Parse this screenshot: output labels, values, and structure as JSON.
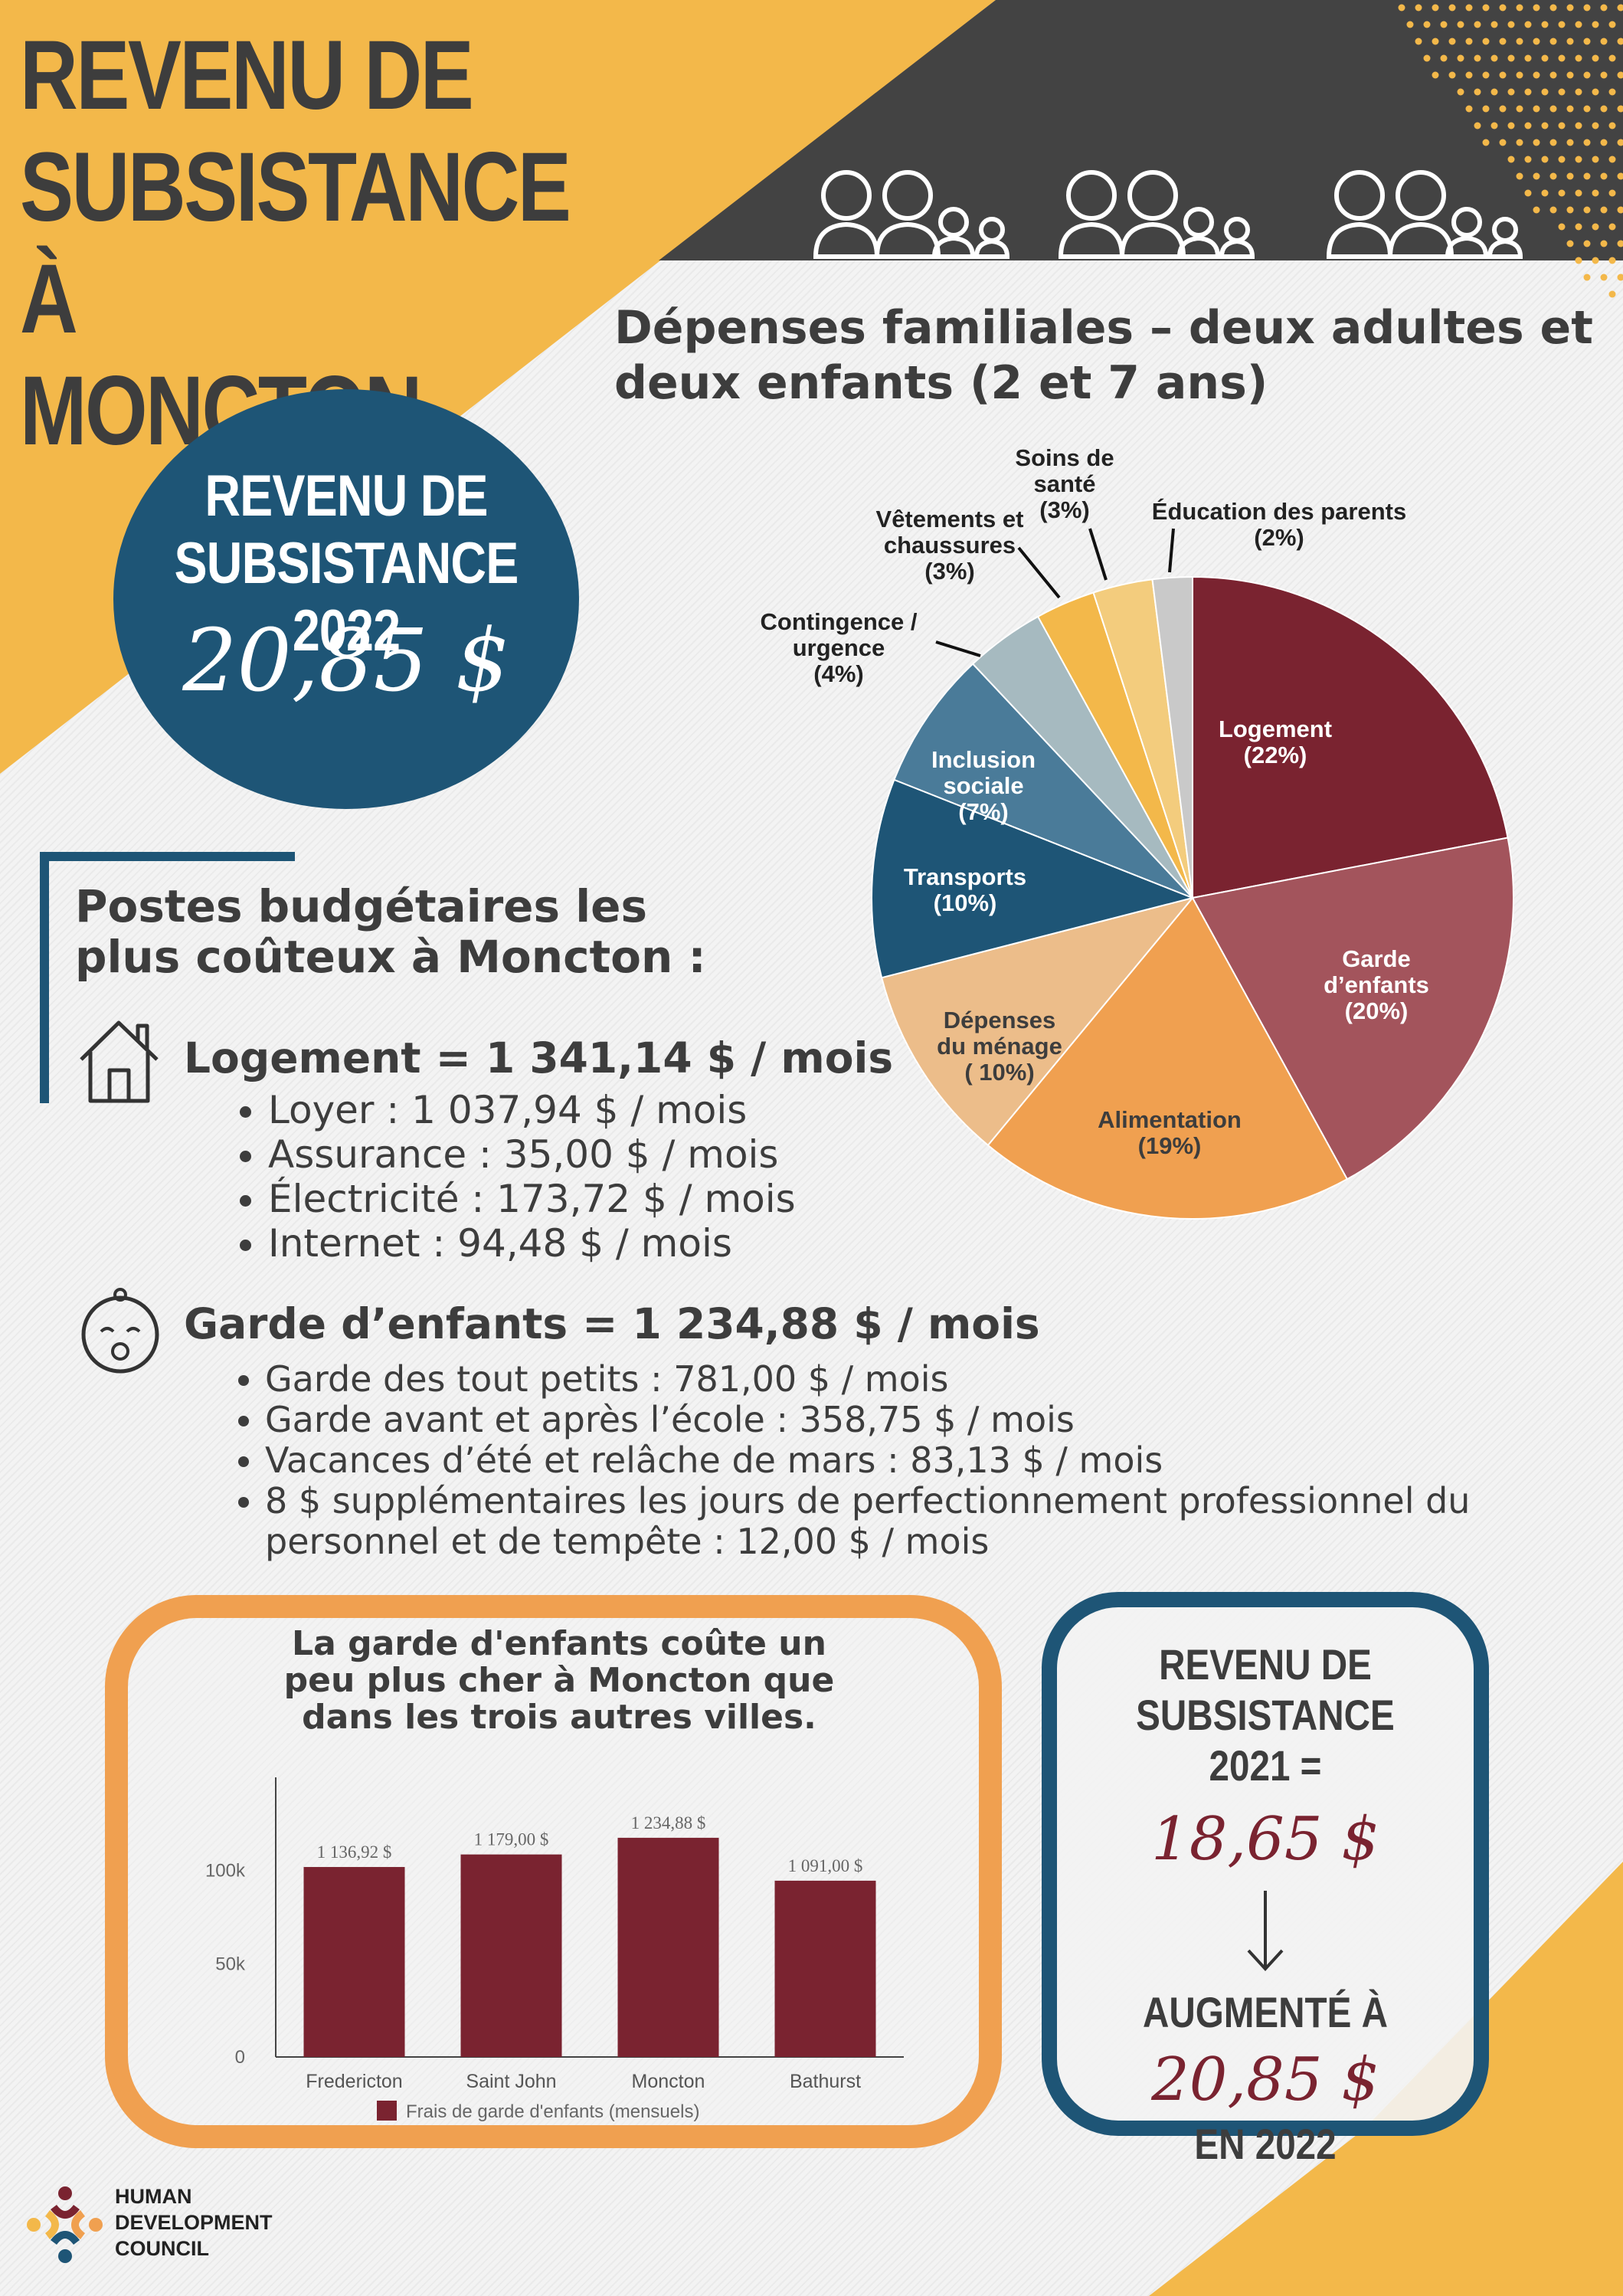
{
  "header": {
    "title": "REVENU DE SUBSISTANCE À MONCTON"
  },
  "highlight": {
    "label": "REVENU DE SUBSISTANCE 2022",
    "value": "20,85 $"
  },
  "pie_title": "Dépenses familiales – deux adultes et deux enfants (2 et 7 ans)",
  "budget": {
    "title": "Postes budgétaires les plus coûteux à Moncton :",
    "housing": {
      "heading": "Logement = 1 341,14 $ / mois",
      "items": [
        "Loyer : 1 037,94 $ / mois",
        "Assurance : 35,00 $ / mois",
        "Électricité : 173,72 $ / mois",
        "Internet : 94,48 $ / mois"
      ]
    },
    "childcare": {
      "heading": "Garde d’enfants = 1 234,88 $ / mois",
      "items": [
        "Garde des tout petits : 781,00 $ / mois",
        "Garde avant et après l’école : 358,75 $ / mois",
        "Vacances d’été et relâche de mars : 83,13 $ / mois",
        "8 $ supplémentaires les jours de perfectionnement professionnel du personnel et de tempête : 12,00 $ / mois"
      ]
    }
  },
  "bar_section": {
    "title": "La garde d'enfants coûte un peu plus cher à Moncton que dans les trois autres villes."
  },
  "comparison": {
    "label_2021": "REVENU DE SUBSISTANCE 2021 =",
    "value_2021": "18,65 $",
    "label_increase": "AUGMENTÉ À",
    "value_2022": "20,85 $",
    "label_year": "EN 2022"
  },
  "logo": {
    "lines": [
      "HUMAN",
      "DEVELOPMENT",
      "COUNCIL"
    ]
  },
  "colors": {
    "dark": "#3d3d3d",
    "yellow": "#f3b84a",
    "navy": "#1e5576",
    "maroon": "#7a2330",
    "orange": "#f0a050"
  },
  "chart_data": [
    {
      "type": "pie",
      "title": "Dépenses familiales – deux adultes et deux enfants (2 et 7 ans)",
      "slices": [
        {
          "label": [
            "Logement",
            "(22%)"
          ],
          "value": 22,
          "color": "#7a2330"
        },
        {
          "label": [
            "Garde",
            "d’enfants",
            "(20%)"
          ],
          "value": 20,
          "color": "#a3545c"
        },
        {
          "label": [
            "Alimentation",
            "(19%)"
          ],
          "value": 19,
          "color": "#f0a050"
        },
        {
          "label": [
            "Dépenses",
            "du ménage",
            "( 10%)"
          ],
          "value": 10,
          "color": "#ecbd8a"
        },
        {
          "label": [
            "Transports",
            "(10%)"
          ],
          "value": 10,
          "color": "#1e5576"
        },
        {
          "label": [
            "Inclusion",
            "sociale",
            "(7%)"
          ],
          "value": 7,
          "color": "#4a7b99"
        },
        {
          "label": [
            "Contingence /",
            "urgence",
            "(4%)"
          ],
          "value": 4,
          "color": "#a6bac0"
        },
        {
          "label": [
            "Vêtements et",
            "chaussures",
            "(3%)"
          ],
          "value": 3,
          "color": "#f3b84a"
        },
        {
          "label": [
            "Soins de",
            "santé",
            "(3%)"
          ],
          "value": 3,
          "color": "#f3cc7d"
        },
        {
          "label": [
            "Éducation des parents",
            "(2%)"
          ],
          "value": 2,
          "color": "#c9c9c9"
        }
      ]
    },
    {
      "type": "bar",
      "categories": [
        "Fredericton",
        "Saint John",
        "Moncton",
        "Bathurst"
      ],
      "series": [
        {
          "name": "Frais de garde d'enfants (mensuels)",
          "values": [
            1136.92,
            1179.0,
            1234.88,
            1091.0
          ]
        }
      ],
      "data_labels": [
        "1 136,92 $",
        "1 179,00 $",
        "1 234,88 $",
        "1 091,00 $"
      ],
      "y_ticks": [
        "0",
        "50k",
        "100k"
      ],
      "color": "#7a2330"
    }
  ]
}
